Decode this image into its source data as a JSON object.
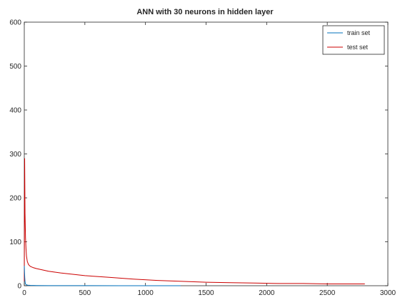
{
  "chart_data": {
    "type": "line",
    "title": "ANN with 30 neurons in hidden layer",
    "xlabel": "",
    "ylabel": "",
    "xlim": [
      0,
      3000
    ],
    "ylim": [
      0,
      600
    ],
    "xticks": [
      "0",
      "500",
      "1000",
      "1500",
      "2000",
      "2500",
      "3000"
    ],
    "yticks": [
      "0",
      "100",
      "200",
      "300",
      "400",
      "500",
      "600"
    ],
    "grid": false,
    "legend_position": "top-right",
    "series": [
      {
        "name": "train set",
        "color": "#0072bd",
        "x": [
          0,
          2,
          4,
          6,
          8,
          10,
          15,
          20,
          30,
          50,
          100,
          200,
          400,
          800,
          1000,
          1290
        ],
        "y": [
          45,
          30,
          18,
          10,
          6,
          4,
          2.5,
          1.8,
          1.2,
          0.8,
          0.5,
          0.3,
          0.2,
          0.1,
          0.1,
          0.1
        ]
      },
      {
        "name": "test set",
        "color": "#cc0000",
        "x": [
          0,
          3,
          6,
          10,
          14,
          18,
          25,
          35,
          50,
          75,
          100,
          150,
          200,
          300,
          400,
          500,
          700,
          900,
          1100,
          1300,
          1500,
          1700,
          1900,
          2100,
          2300,
          2500,
          2700,
          2810
        ],
        "y": [
          10,
          290,
          165,
          110,
          85,
          68,
          55,
          48,
          44,
          41,
          39,
          36,
          33,
          29,
          26,
          23,
          19,
          15,
          12,
          10,
          8,
          7,
          6,
          5,
          5,
          4,
          4,
          4
        ]
      }
    ]
  }
}
